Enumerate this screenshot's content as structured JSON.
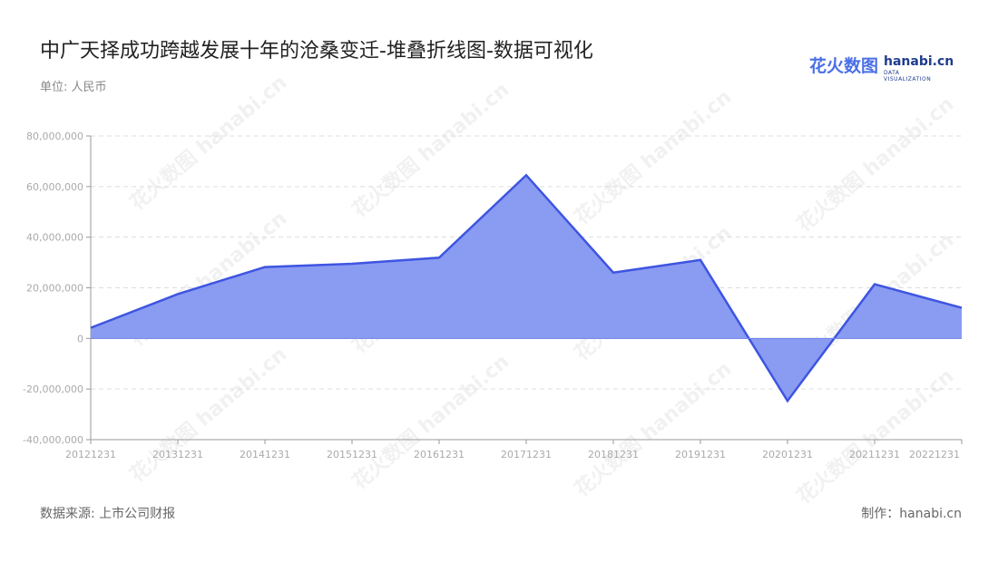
{
  "title": "中广天择成功跨越发展十年的沧桑变迁-堆叠折线图-数据可视化",
  "unit_label": "单位: 人民币",
  "source_label": "数据来源: 上市公司财报",
  "maker_label": "制作：hanabi.cn",
  "logo": {
    "cn": "花火数图",
    "en": "hanabi.cn",
    "sub": "DATA VISUALIZATION"
  },
  "watermark_text": "花火数图 hanabi.cn",
  "colors": {
    "line": "#3e55e0",
    "fill": "#8a9bf2",
    "grid": "#dddddd",
    "axis_text": "#aaaaaa"
  },
  "chart_data": {
    "type": "area",
    "categories": [
      "20121231",
      "20131231",
      "20141231",
      "20151231",
      "20161231",
      "20171231",
      "20181231",
      "20191231",
      "20201231",
      "20211231",
      "20221231"
    ],
    "series": [
      {
        "values": [
          4200000,
          17500000,
          28200000,
          29500000,
          31900000,
          64500000,
          26000000,
          31000000,
          -24700000,
          21400000,
          12100000
        ]
      }
    ],
    "yticks": [
      80000000,
      60000000,
      40000000,
      20000000,
      0,
      -20000000,
      -40000000
    ],
    "ytick_labels": [
      "80,000,000",
      "60,000,000",
      "40,000,000",
      "20,000,000",
      "0",
      "-20,000,000",
      "-40,000,000"
    ],
    "ylim": [
      -40000000,
      80000000
    ],
    "grid": true,
    "legend": "none"
  }
}
